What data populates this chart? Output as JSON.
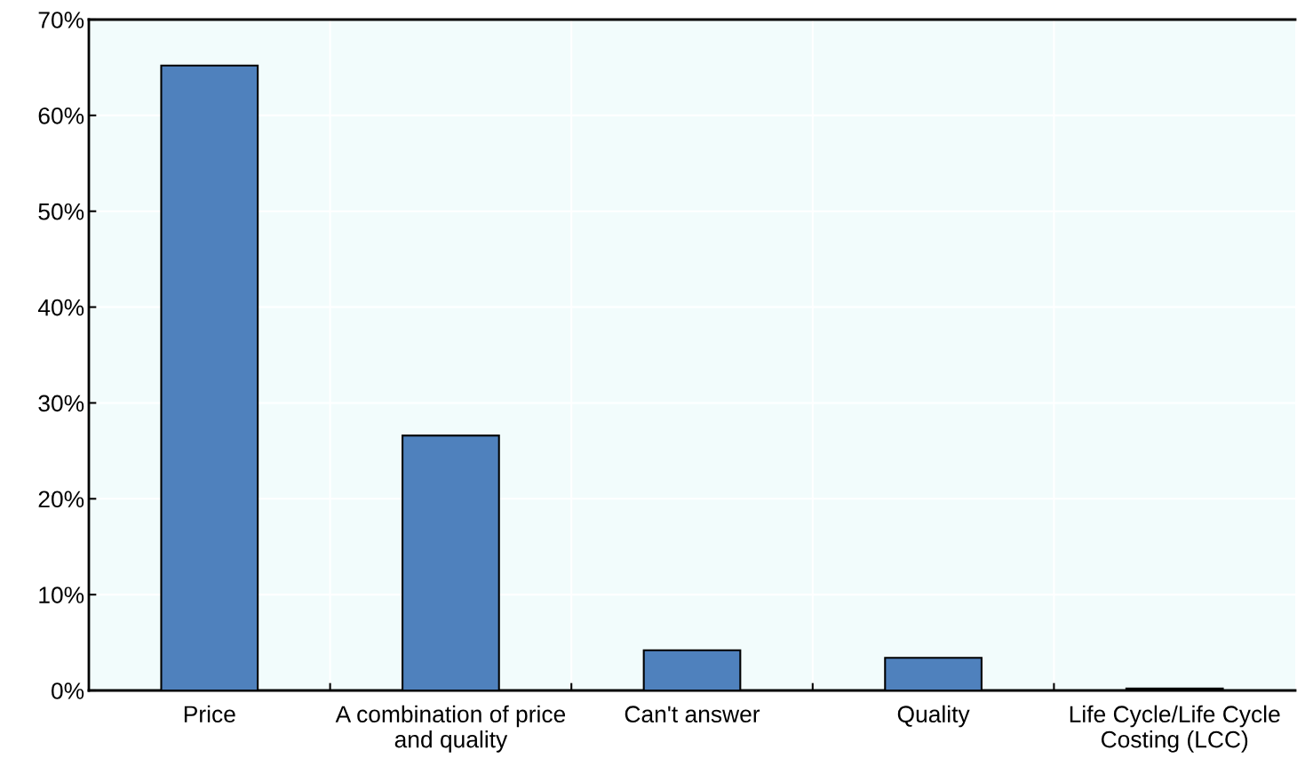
{
  "chart_data": {
    "type": "bar",
    "categories": [
      "Price",
      "A combination of price\nand quality",
      "Can't answer",
      "Quality",
      "Life Cycle/Life Cycle\nCosting (LCC)"
    ],
    "values": [
      65.2,
      26.6,
      4.2,
      3.4,
      0.2
    ],
    "color": "#4f81bd",
    "ylim": [
      0,
      70
    ],
    "yticks": [
      {
        "value": 0,
        "label": "0%"
      },
      {
        "value": 10,
        "label": "10%"
      },
      {
        "value": 20,
        "label": "20%"
      },
      {
        "value": 30,
        "label": "30%"
      },
      {
        "value": 40,
        "label": "40%"
      },
      {
        "value": 50,
        "label": "50%"
      },
      {
        "value": 60,
        "label": "60%"
      },
      {
        "value": 70,
        "label": "70%"
      }
    ],
    "grid": true
  }
}
